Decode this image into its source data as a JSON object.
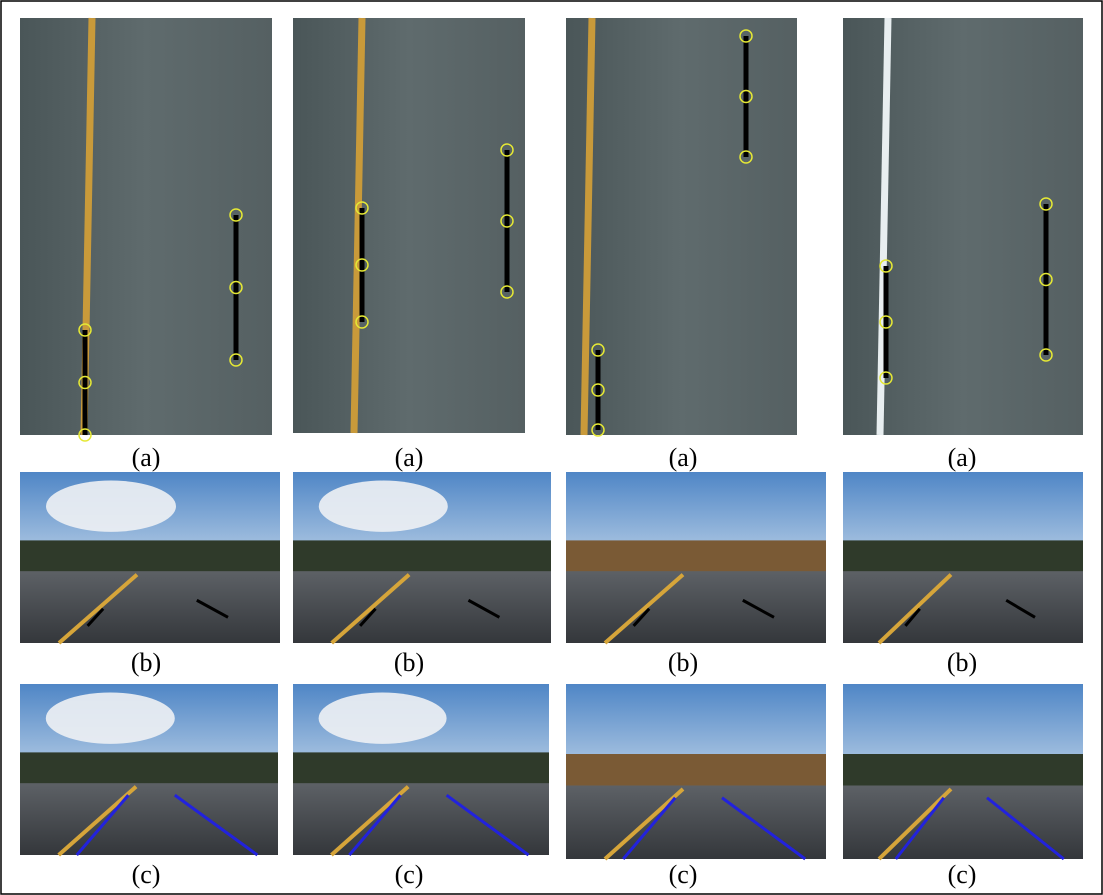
{
  "rows": [
    {
      "captions": [
        "(a)",
        "(a)",
        "(a)",
        "(a)"
      ]
    },
    {
      "captions": [
        "(b)",
        "(b)",
        "(b)",
        "(b)"
      ]
    },
    {
      "captions": [
        "(c)",
        "(c)",
        "(c)",
        "(c)"
      ]
    }
  ]
}
